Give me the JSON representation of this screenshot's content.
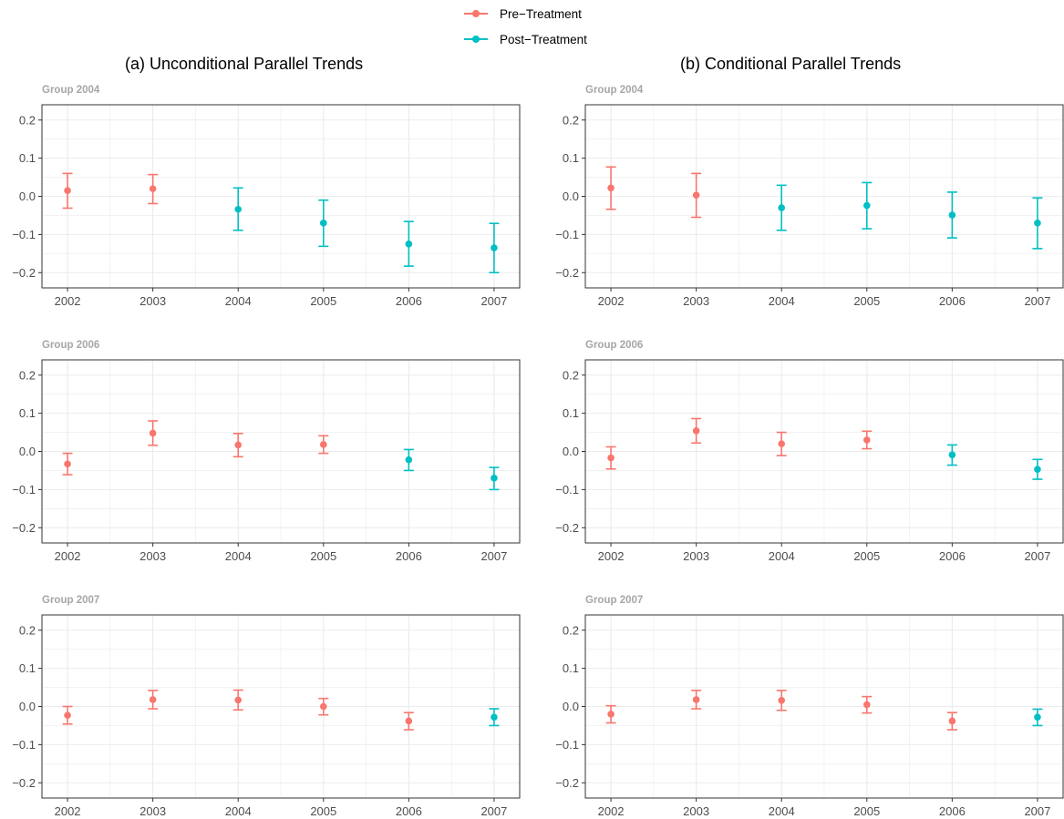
{
  "legend": {
    "items": [
      {
        "label": "Pre−Treatment",
        "color": "#F8766D"
      },
      {
        "label": "Post−Treatment",
        "color": "#00BFC4"
      }
    ]
  },
  "colors": {
    "pre": "#F8766D",
    "post": "#00BFC4",
    "grid": "#EBEBEB",
    "strip_text": "#A6A6A6"
  },
  "chart_data": [
    {
      "type": "scatter",
      "title": "(a) Unconditional Parallel Trends",
      "x_ticks": [
        "2002",
        "2003",
        "2004",
        "2005",
        "2006",
        "2007"
      ],
      "y_ticks": [
        "0.2",
        "0.1",
        "0.0",
        "−0.1",
        "−0.2"
      ],
      "ylim": [
        -0.24,
        0.24
      ],
      "grid": true,
      "facets": [
        {
          "label": "Group 2004",
          "points": [
            {
              "year": 2002,
              "est": 0.015,
              "lo": -0.031,
              "hi": 0.06,
              "phase": "pre"
            },
            {
              "year": 2003,
              "est": 0.02,
              "lo": -0.019,
              "hi": 0.057,
              "phase": "pre"
            },
            {
              "year": 2004,
              "est": -0.034,
              "lo": -0.089,
              "hi": 0.022,
              "phase": "post"
            },
            {
              "year": 2005,
              "est": -0.07,
              "lo": -0.131,
              "hi": -0.01,
              "phase": "post"
            },
            {
              "year": 2006,
              "est": -0.125,
              "lo": -0.183,
              "hi": -0.066,
              "phase": "post"
            },
            {
              "year": 2007,
              "est": -0.135,
              "lo": -0.2,
              "hi": -0.071,
              "phase": "post"
            }
          ]
        },
        {
          "label": "Group 2006",
          "points": [
            {
              "year": 2002,
              "est": -0.033,
              "lo": -0.061,
              "hi": -0.005,
              "phase": "pre"
            },
            {
              "year": 2003,
              "est": 0.048,
              "lo": 0.016,
              "hi": 0.08,
              "phase": "pre"
            },
            {
              "year": 2004,
              "est": 0.017,
              "lo": -0.014,
              "hi": 0.047,
              "phase": "pre"
            },
            {
              "year": 2005,
              "est": 0.018,
              "lo": -0.005,
              "hi": 0.041,
              "phase": "pre"
            },
            {
              "year": 2006,
              "est": -0.022,
              "lo": -0.05,
              "hi": 0.005,
              "phase": "post"
            },
            {
              "year": 2007,
              "est": -0.07,
              "lo": -0.1,
              "hi": -0.042,
              "phase": "post"
            }
          ]
        },
        {
          "label": "Group 2007",
          "points": [
            {
              "year": 2002,
              "est": -0.023,
              "lo": -0.046,
              "hi": 0.0,
              "phase": "pre"
            },
            {
              "year": 2003,
              "est": 0.018,
              "lo": -0.006,
              "hi": 0.042,
              "phase": "pre"
            },
            {
              "year": 2004,
              "est": 0.017,
              "lo": -0.009,
              "hi": 0.043,
              "phase": "pre"
            },
            {
              "year": 2005,
              "est": 0.0,
              "lo": -0.022,
              "hi": 0.021,
              "phase": "pre"
            },
            {
              "year": 2006,
              "est": -0.038,
              "lo": -0.061,
              "hi": -0.016,
              "phase": "pre"
            },
            {
              "year": 2007,
              "est": -0.028,
              "lo": -0.05,
              "hi": -0.006,
              "phase": "post"
            }
          ]
        }
      ]
    },
    {
      "type": "scatter",
      "title": "(b) Conditional Parallel Trends",
      "x_ticks": [
        "2002",
        "2003",
        "2004",
        "2005",
        "2006",
        "2007"
      ],
      "y_ticks": [
        "0.2",
        "0.1",
        "0.0",
        "−0.1",
        "−0.2"
      ],
      "ylim": [
        -0.24,
        0.24
      ],
      "grid": true,
      "facets": [
        {
          "label": "Group 2004",
          "points": [
            {
              "year": 2002,
              "est": 0.022,
              "lo": -0.034,
              "hi": 0.077,
              "phase": "pre"
            },
            {
              "year": 2003,
              "est": 0.003,
              "lo": -0.055,
              "hi": 0.06,
              "phase": "pre"
            },
            {
              "year": 2004,
              "est": -0.03,
              "lo": -0.089,
              "hi": 0.029,
              "phase": "post"
            },
            {
              "year": 2005,
              "est": -0.024,
              "lo": -0.085,
              "hi": 0.036,
              "phase": "post"
            },
            {
              "year": 2006,
              "est": -0.049,
              "lo": -0.109,
              "hi": 0.011,
              "phase": "post"
            },
            {
              "year": 2007,
              "est": -0.07,
              "lo": -0.137,
              "hi": -0.004,
              "phase": "post"
            }
          ]
        },
        {
          "label": "Group 2006",
          "points": [
            {
              "year": 2002,
              "est": -0.017,
              "lo": -0.046,
              "hi": 0.012,
              "phase": "pre"
            },
            {
              "year": 2003,
              "est": 0.054,
              "lo": 0.022,
              "hi": 0.086,
              "phase": "pre"
            },
            {
              "year": 2004,
              "est": 0.02,
              "lo": -0.011,
              "hi": 0.05,
              "phase": "pre"
            },
            {
              "year": 2005,
              "est": 0.03,
              "lo": 0.007,
              "hi": 0.053,
              "phase": "pre"
            },
            {
              "year": 2006,
              "est": -0.009,
              "lo": -0.036,
              "hi": 0.017,
              "phase": "post"
            },
            {
              "year": 2007,
              "est": -0.047,
              "lo": -0.073,
              "hi": -0.021,
              "phase": "post"
            }
          ]
        },
        {
          "label": "Group 2007",
          "points": [
            {
              "year": 2002,
              "est": -0.02,
              "lo": -0.043,
              "hi": 0.002,
              "phase": "pre"
            },
            {
              "year": 2003,
              "est": 0.018,
              "lo": -0.006,
              "hi": 0.042,
              "phase": "pre"
            },
            {
              "year": 2004,
              "est": 0.016,
              "lo": -0.01,
              "hi": 0.042,
              "phase": "pre"
            },
            {
              "year": 2005,
              "est": 0.005,
              "lo": -0.017,
              "hi": 0.026,
              "phase": "pre"
            },
            {
              "year": 2006,
              "est": -0.038,
              "lo": -0.061,
              "hi": -0.016,
              "phase": "pre"
            },
            {
              "year": 2007,
              "est": -0.028,
              "lo": -0.05,
              "hi": -0.007,
              "phase": "post"
            }
          ]
        }
      ]
    }
  ]
}
